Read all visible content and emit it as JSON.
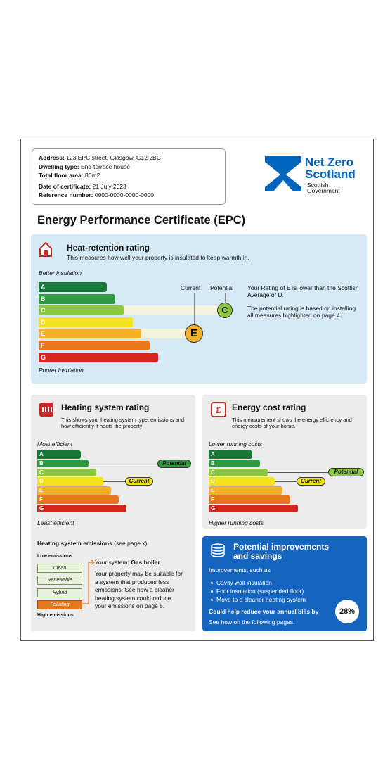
{
  "header": {
    "fields": [
      {
        "label": "Address:",
        "value": "123 EPC street, Glasgow, G12 2BC"
      },
      {
        "label": "Dwelling type:",
        "value": "End-terrace house"
      },
      {
        "label": "Total floor area:",
        "value": "86m2"
      },
      {
        "label": "Date of certificate:",
        "value": "21 July 2023"
      },
      {
        "label": "Reference number:",
        "value": "0000-0000-0000-0000"
      }
    ]
  },
  "logo": {
    "line1": "Net Zero",
    "line2": "Scotland",
    "sub1": "Scottish",
    "sub2": "Government"
  },
  "title": "Energy Performance Certificate (EPC)",
  "bands": {
    "letters": [
      "A",
      "B",
      "C",
      "D",
      "E",
      "F",
      "G"
    ],
    "colors": [
      "#17783a",
      "#2f9a40",
      "#8dc63f",
      "#f4e31c",
      "#f4b02a",
      "#e5781f",
      "#d4261f"
    ]
  },
  "heat_retention": {
    "title": "Heat-retention rating",
    "subtitle": "This measures how well your property is insulated to keep warmth in.",
    "top_label": "Better insulation",
    "bottom_label": "Poorer insulation",
    "current_label": "Current",
    "potential_label": "Potential",
    "current": "E",
    "potential": "C",
    "notes": [
      "Your Rating of E is lower than the Scottish Average of D.",
      "The potential rating is based on installing all measures highlighted on page 4."
    ]
  },
  "heating_system": {
    "title": "Heating system rating",
    "subtitle": "This shows your heating system type, emissions and how efficiently it heats the property",
    "top_label": "Most efficient",
    "bottom_label": "Least efficient",
    "current_label": "Current",
    "potential_label": "Potential",
    "current_band": "D",
    "potential_band": "B",
    "emissions": {
      "title": "Heating system emissions",
      "title_note": "(see page x)",
      "low_label": "Low emissions",
      "high_label": "High emissions",
      "levels": [
        "Clean",
        "Renewable",
        "Hybrid",
        "Polluting"
      ],
      "current_level": "Polluting",
      "system_label": "Your system:",
      "system": "Gas boiler",
      "text": "Your property may be suitable for a system that produces less emissions. See how a cleaner heating system could reduce your emissions on page 5."
    }
  },
  "energy_cost": {
    "title": "Energy cost rating",
    "subtitle": "This measurement shows the energy efficiency and energy costs of your home.",
    "top_label": "Lower running costs",
    "bottom_label": "Higher running costs",
    "current_label": "Current",
    "potential_label": "Potential",
    "current_band": "D",
    "potential_band": "C"
  },
  "improvements": {
    "title": "Potential improvements and savings",
    "intro": "Improvements, such as",
    "items": [
      "Cavity wall insulation",
      "Foor insulation (suspended floor)",
      "Move to a cleaner heating system"
    ],
    "savings_text": "Could help reduce your annual bills by",
    "saving": "28%",
    "footer": "See how on the following pages."
  }
}
